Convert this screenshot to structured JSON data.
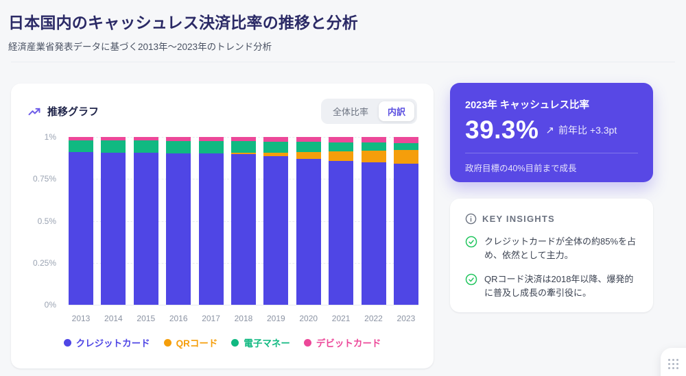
{
  "page": {
    "title": "日本国内のキャッシュレス決済比率の推移と分析",
    "subtitle": "経済産業省発表データに基づく2013年～2023年のトレンド分析"
  },
  "chart_card": {
    "title": "推移グラフ",
    "tabs": [
      {
        "label": "全体比率",
        "active": false
      },
      {
        "label": "内訳",
        "active": true
      }
    ]
  },
  "chart_data": {
    "type": "bar",
    "stacked": true,
    "normalized": true,
    "title": "推移グラフ",
    "categories": [
      2013,
      2014,
      2015,
      2016,
      2017,
      2018,
      2019,
      2020,
      2021,
      2022,
      2023
    ],
    "series": [
      {
        "key": "credit",
        "name": "クレジットカード",
        "color": "#4f46e5",
        "values": [
          91.0,
          90.8,
          90.6,
          90.4,
          90.4,
          89.8,
          88.6,
          86.8,
          85.8,
          84.8,
          84.0
        ]
      },
      {
        "key": "qr",
        "name": "QRコード",
        "color": "#f59e0b",
        "values": [
          0,
          0,
          0,
          0,
          0,
          0.7,
          1.9,
          4.4,
          5.8,
          7.2,
          8.2
        ]
      },
      {
        "key": "emoney",
        "name": "電子マネー",
        "color": "#10b981",
        "values": [
          7.0,
          7.2,
          7.2,
          7.2,
          7.0,
          6.9,
          6.8,
          5.8,
          5.2,
          4.6,
          4.2
        ]
      },
      {
        "key": "debit",
        "name": "デビットカード",
        "color": "#ec4899",
        "values": [
          2.0,
          2.0,
          2.2,
          2.4,
          2.6,
          2.6,
          2.7,
          3.0,
          3.2,
          3.4,
          3.6
        ]
      }
    ],
    "y_ticks": [
      "1%",
      "0.75%",
      "0.5%",
      "0.25%",
      "0%"
    ],
    "ylim": [
      0,
      1
    ],
    "grid": "dashed-horizontal",
    "legend_position": "bottom"
  },
  "stat_card": {
    "label": "2023年 キャッシュレス比率",
    "value": "39.3%",
    "delta_arrow": "↗",
    "delta_label": "前年比 +3.3pt",
    "footnote": "政府目標の40%目前まで成長",
    "bg_color": "#5848e5"
  },
  "insights": {
    "title": "KEY INSIGHTS",
    "items": [
      "クレジットカードが全体の約85%を占め、依然として主力。",
      "QRコード決済は2018年以降、爆発的に普及し成長の牽引役に。"
    ],
    "check_color": "#22c55e"
  },
  "floating_button": {
    "icon": "grip-dots-icon"
  }
}
